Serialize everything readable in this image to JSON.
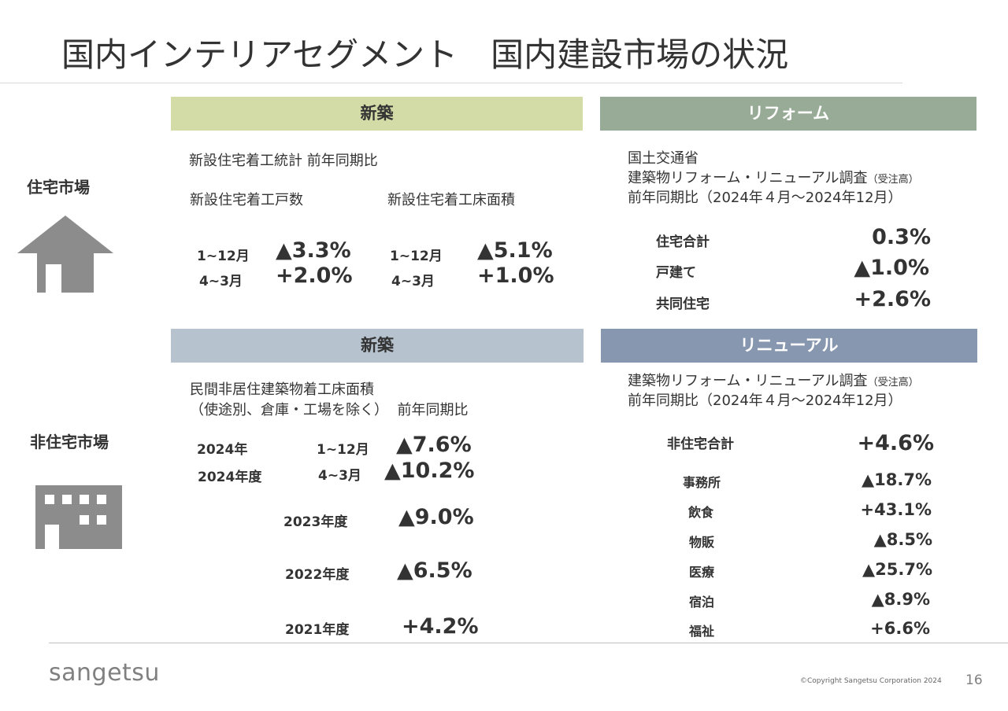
{
  "title": "国内インテリアセグメント　国内建設市場の状況",
  "residential": {
    "label": "住宅市場",
    "new": {
      "header": "新築",
      "stat_title": "新設住宅着工統計 前年同期比",
      "col1_title": "新設住宅着工戸数",
      "col2_title": "新設住宅着工床面積",
      "rows": [
        {
          "period": "1~12月",
          "v1": "▲3.3%",
          "v2": "▲5.1%"
        },
        {
          "period": "4~3月",
          "v1": "+2.0%",
          "v2": "+1.0%"
        }
      ]
    },
    "reform": {
      "header": "リフォーム",
      "src1": "国土交通省",
      "src2": "建築物リフォーム・リニューアル調査",
      "src2_note": "（受注高）",
      "period": "前年同期比（2024年４月～2024年12月）",
      "rows": [
        {
          "label": "住宅合計",
          "value": "0.3%"
        },
        {
          "label": "戸建て",
          "value": "▲1.0%"
        },
        {
          "label": "共同住宅",
          "value": "+2.6%"
        }
      ]
    }
  },
  "nonresidential": {
    "label": "非住宅市場",
    "new": {
      "header": "新築",
      "stat_line1": "民間非居住建築物着工床面積",
      "stat_line2": "（使途別、倉庫・工場を除く）  前年同期比",
      "rows": [
        {
          "year": "2024年",
          "period": "1~12月",
          "value": "▲7.6%"
        },
        {
          "year": "2024年度",
          "period": "4~3月",
          "value": "▲10.2%"
        },
        {
          "year": "2023年度",
          "value": "▲9.0%"
        },
        {
          "year": "2022年度",
          "value": "▲6.5%"
        },
        {
          "year": "2021年度",
          "value": "+4.2%"
        }
      ]
    },
    "renewal": {
      "header": "リニューアル",
      "src": "建築物リフォーム・リニューアル調査",
      "src_note": "（受注高）",
      "period": "前年同期比（2024年４月～2024年12月）",
      "total": {
        "label": "非住宅合計",
        "value": "+4.6%"
      },
      "rows": [
        {
          "label": "事務所",
          "value": "▲18.7%"
        },
        {
          "label": "飲食",
          "value": "+43.1%"
        },
        {
          "label": "物販",
          "value": "▲8.5%"
        },
        {
          "label": "医療",
          "value": "▲25.7%"
        },
        {
          "label": "宿泊",
          "value": "▲8.9%"
        },
        {
          "label": "福祉",
          "value": "+6.6%"
        }
      ]
    }
  },
  "colors": {
    "new_res": "#d3dba6",
    "reform": "#98ab96",
    "new_nonres": "#b6c3cf",
    "renewal": "#8797af",
    "icon": "#8c8c8c"
  },
  "icons": {
    "house": "house-icon",
    "building": "building-icon"
  },
  "footer": {
    "logo": "sangetsu",
    "copyright": "©Copyright Sangetsu Corporation 2024",
    "page": "16"
  }
}
